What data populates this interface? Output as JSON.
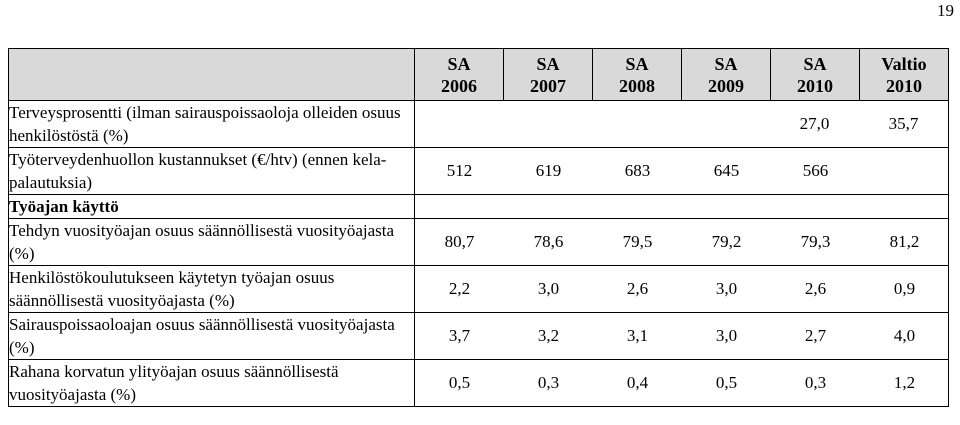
{
  "page_number": "19",
  "columns": [
    {
      "line1": "SA",
      "line2": "2006"
    },
    {
      "line1": "SA",
      "line2": "2007"
    },
    {
      "line1": "SA",
      "line2": "2008"
    },
    {
      "line1": "SA",
      "line2": "2009"
    },
    {
      "line1": "SA",
      "line2": "2010"
    },
    {
      "line1": "Valtio",
      "line2": "2010"
    }
  ],
  "rows": [
    {
      "label": "Terveysprosentti (ilman sairauspoissaoloja olleiden osuus henkilöstöstä (%)",
      "values": [
        "27,0",
        "35,7"
      ]
    },
    {
      "label": "Työterveydenhuollon kustannukset (€/htv) (ennen kela-palautuksia)",
      "values": [
        "512",
        "619",
        "683",
        "645",
        "566"
      ]
    },
    {
      "label": "Työajan käyttö",
      "values": []
    },
    {
      "label": "Tehdyn vuosityöajan osuus säännöllisestä vuosityöajasta (%)",
      "values": [
        "80,7",
        "78,6",
        "79,5",
        "79,2",
        "79,3",
        "81,2"
      ]
    },
    {
      "label": "Henkilöstökoulutukseen käytetyn työajan osuus säännöllisestä vuosityöajasta (%)",
      "values": [
        "2,2",
        "3,0",
        "2,6",
        "3,0",
        "2,6",
        "0,9"
      ]
    },
    {
      "label": "Sairauspoissaoloajan osuus säännöllisestä vuosityöajasta (%)",
      "values": [
        "3,7",
        "3,2",
        "3,1",
        "3,0",
        "2,7",
        "4,0"
      ]
    },
    {
      "label": "Rahana korvatun ylityöajan osuus säännölli­sestä vuosityöajasta (%)",
      "values": [
        "0,5",
        "0,3",
        "0,4",
        "0,5",
        "0,3",
        "1,2"
      ]
    }
  ]
}
